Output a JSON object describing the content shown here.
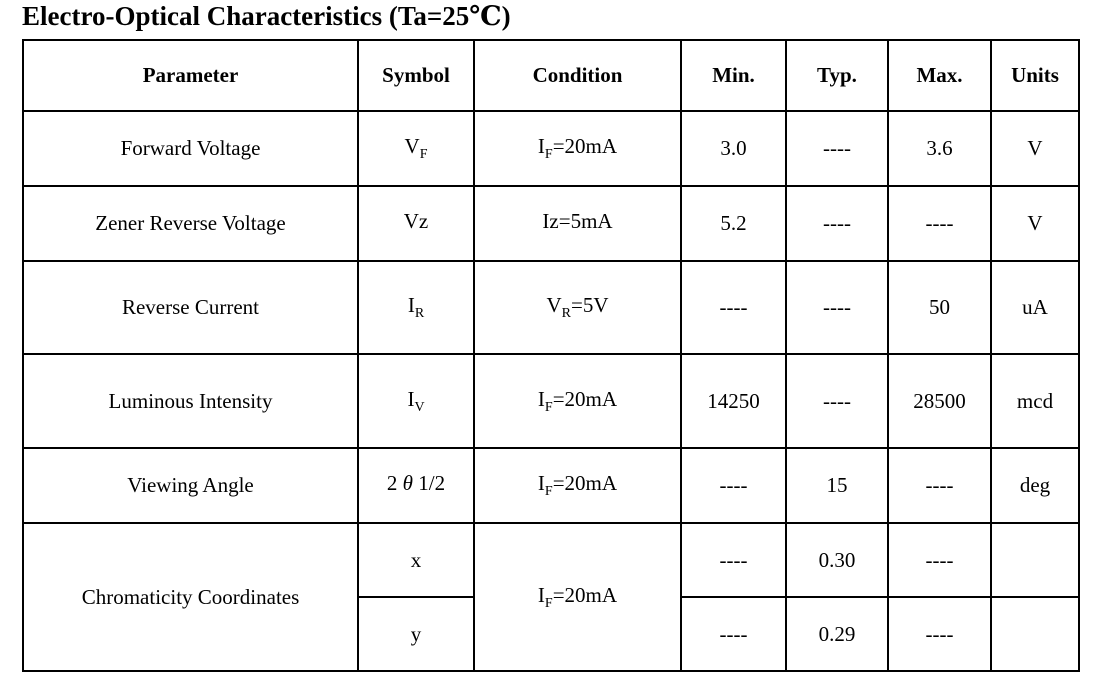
{
  "title": "Electro-Optical Characteristics (Ta=25℃)",
  "table": {
    "headers": {
      "parameter": "Parameter",
      "symbol": "Symbol",
      "condition": "Condition",
      "min": "Min.",
      "typ": "Typ.",
      "max": "Max.",
      "units": "Units"
    },
    "rows": [
      {
        "parameter": "Forward Voltage",
        "symbol": {
          "pre": "V",
          "sub": "F",
          "italic": "",
          "post": ""
        },
        "condition": {
          "pre": "I",
          "sub": "F",
          "post": "=20mA"
        },
        "min": "3.0",
        "typ": "----",
        "max": "3.6",
        "units": "V"
      },
      {
        "parameter": "Zener Reverse Voltage",
        "symbol": {
          "pre": "Vz",
          "sub": "",
          "italic": "",
          "post": ""
        },
        "condition": {
          "pre": "Iz",
          "sub": "",
          "post": "=5mA"
        },
        "min": "5.2",
        "typ": "----",
        "max": "----",
        "units": "V"
      },
      {
        "parameter": "Reverse Current",
        "symbol": {
          "pre": "I",
          "sub": "R",
          "italic": "",
          "post": ""
        },
        "condition": {
          "pre": "V",
          "sub": "R",
          "post": "=5V"
        },
        "min": "----",
        "typ": "----",
        "max": "50",
        "units": "uA"
      },
      {
        "parameter": "Luminous Intensity",
        "symbol": {
          "pre": "I",
          "sub": "V",
          "italic": "",
          "post": ""
        },
        "condition": {
          "pre": "I",
          "sub": "F",
          "post": "=20mA"
        },
        "min": "14250",
        "typ": "----",
        "max": "28500",
        "units": "mcd"
      },
      {
        "parameter": "Viewing Angle",
        "symbol": {
          "pre": "2 ",
          "sub": "",
          "italic": "θ",
          "post": " 1/2"
        },
        "condition": {
          "pre": "I",
          "sub": "F",
          "post": "=20mA"
        },
        "min": "----",
        "typ": "15",
        "max": "----",
        "units": "deg"
      }
    ],
    "chromaticity": {
      "parameter": "Chromaticity Coordinates",
      "condition": {
        "pre": "I",
        "sub": "F",
        "post": "=20mA"
      },
      "x_row": {
        "symbol": "x",
        "min": "----",
        "typ": "0.30",
        "max": "----",
        "units": ""
      },
      "y_row": {
        "symbol": "y",
        "min": "----",
        "typ": "0.29",
        "max": "----",
        "units": ""
      }
    }
  }
}
